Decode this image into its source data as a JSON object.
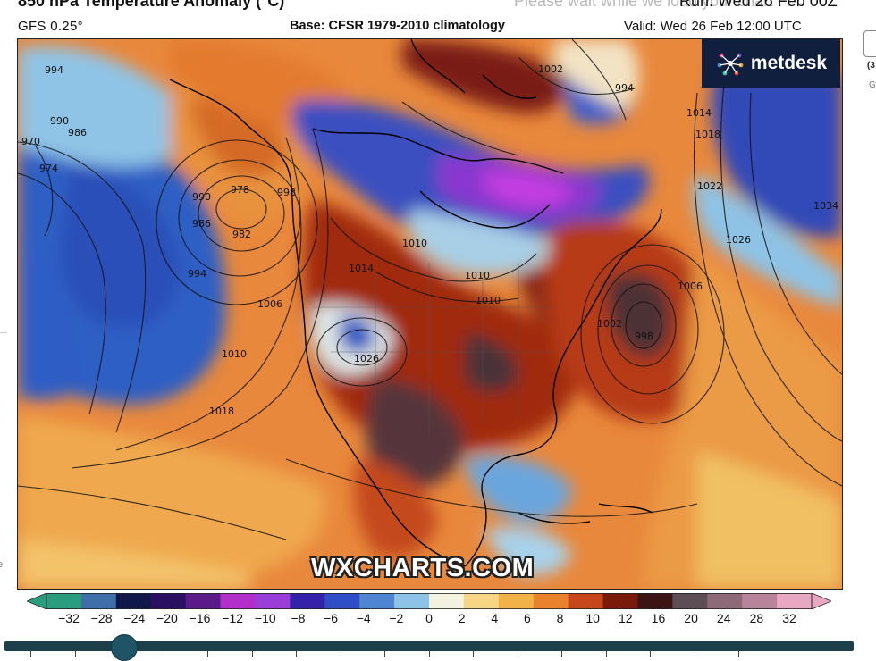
{
  "header": {
    "loading_text": "Please wait while we load your chart . .",
    "title": "850 hPa Temperature Anomaly (°C)",
    "run": "Run: Wed 26 Feb 00Z",
    "model": "GFS 0.25°",
    "base": "Base: CFSR 1979-2010 climatology",
    "valid": "Valid: Wed 26 Feb 12:00 UTC"
  },
  "brand": {
    "name": "metdesk",
    "logo_icon": "metdesk-spark-logo"
  },
  "watermark": "WXCHARTS.COM",
  "isobars": [
    "994",
    "970",
    "974",
    "986",
    "990",
    "978",
    "982",
    "986",
    "990",
    "994",
    "998",
    "1006",
    "1010",
    "1018",
    "1014",
    "1010",
    "1010",
    "1010",
    "1026",
    "1002",
    "994",
    "1014",
    "1018",
    "1022",
    "1026",
    "1034",
    "1002",
    "998",
    "1006"
  ],
  "colorbar": {
    "ticks": [
      "−32",
      "−28",
      "−24",
      "−20",
      "−16",
      "−12",
      "−10",
      "−8",
      "−6",
      "−4",
      "−2",
      "0",
      "2",
      "4",
      "6",
      "8",
      "10",
      "12",
      "16",
      "20",
      "24",
      "28",
      "32"
    ],
    "colors": [
      "#2a9d7e",
      "#3e6fa8",
      "#10184a",
      "#2a1060",
      "#5a1a8a",
      "#b22fc9",
      "#9b3ed8",
      "#3422a8",
      "#2f4dc4",
      "#4f86d1",
      "#8ec3e8",
      "#f3f1df",
      "#f6d584",
      "#f2b24a",
      "#e9822c",
      "#c5471a",
      "#7a1a0c",
      "#3c1414",
      "#5d4d55",
      "#8c6a77",
      "#b8849a",
      "#e8a8c2"
    ]
  },
  "slider": {
    "position_fraction": 0.14
  },
  "side_panel": {
    "text1": "(3",
    "text2": "G"
  },
  "left_edge_glyph": "e",
  "colors": {
    "warm_orange": "#e8823a",
    "deep_red": "#8b1e0d",
    "cold_blue": "#2e5fc4",
    "purple": "#9a39d4",
    "brand_bg": "#0f1f3d",
    "slider_track": "#1d3f4a"
  }
}
